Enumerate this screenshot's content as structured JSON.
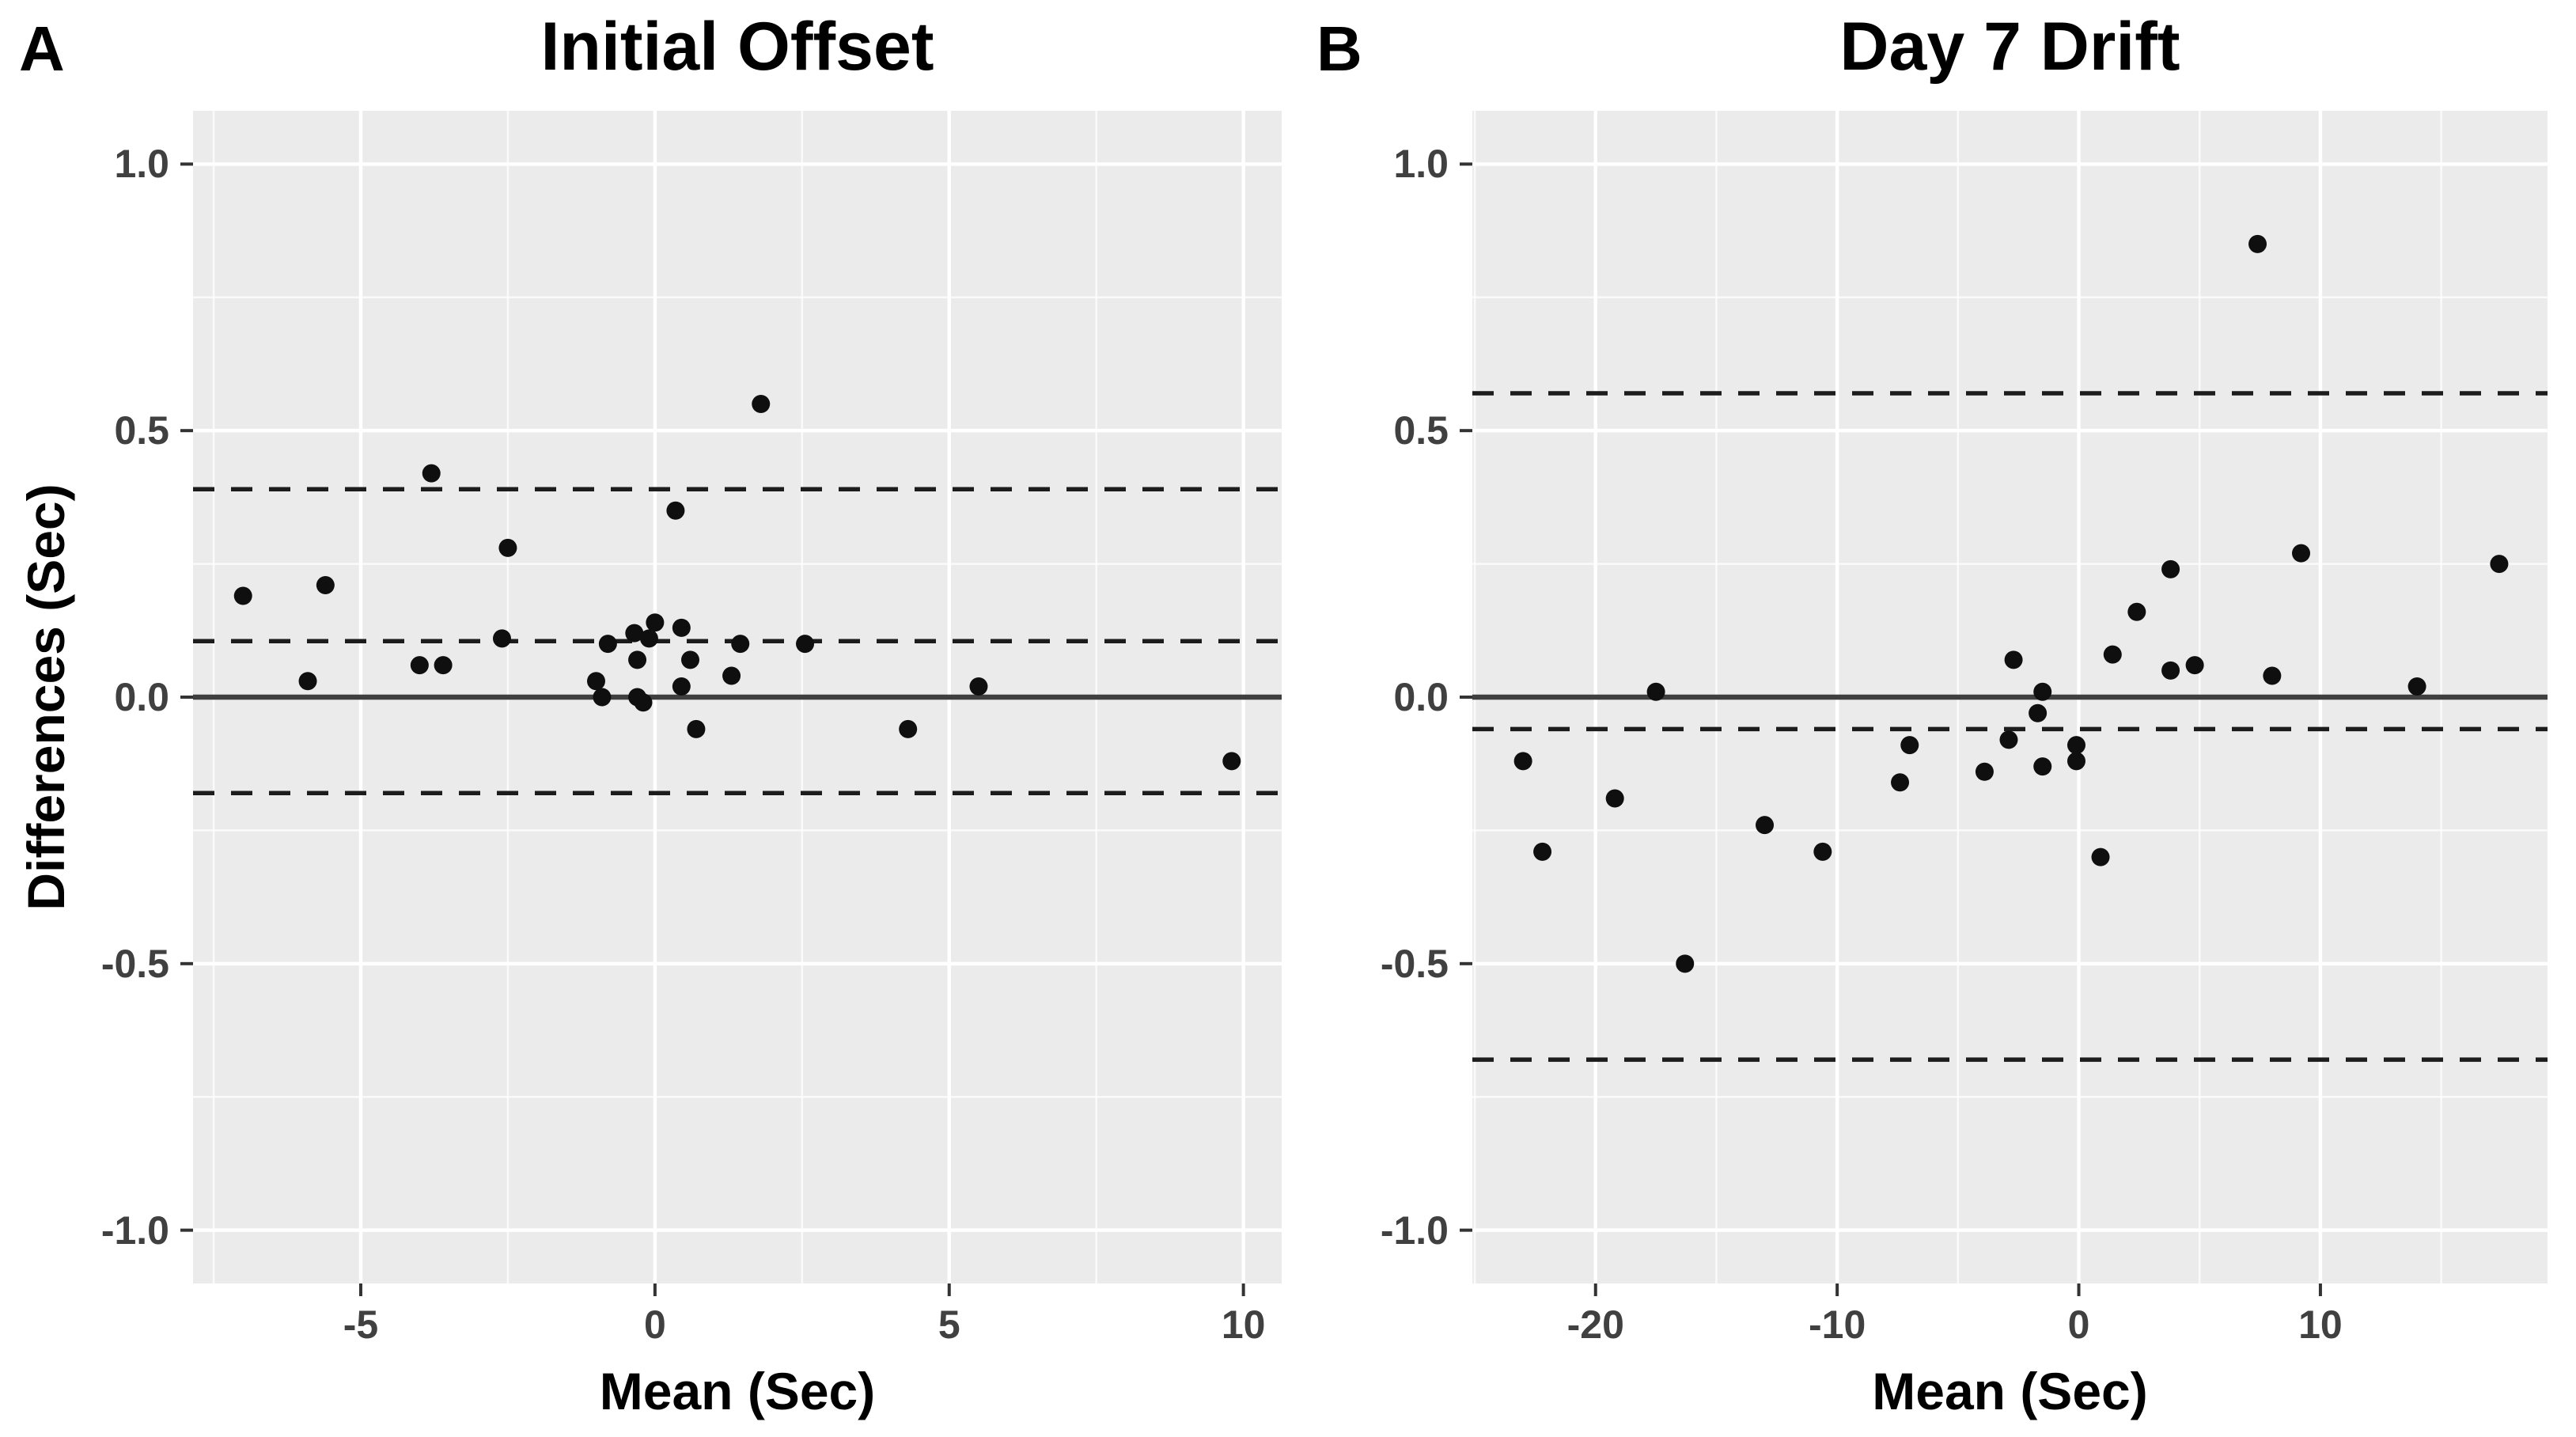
{
  "figure": {
    "y_axis_title": "Differences (Sec)",
    "background_color": "#ffffff",
    "panel_background_color": "#ebebeb",
    "gridline_color": "#ffffff",
    "point_color": "#0f0f0f",
    "dashed_line_color": "#1c1c1c",
    "zero_line_color": "#3f3f3f",
    "tick_mark_color": "#333333",
    "tick_label_color": "#404040"
  },
  "chart_data": [
    {
      "type": "scatter",
      "panel_label": "A",
      "title": "Initial Offset",
      "xlabel": "Mean (Sec)",
      "ylabel": "Differences (Sec)",
      "xlim": [
        -7.85,
        10.65
      ],
      "ylim": [
        -1.1,
        1.1
      ],
      "x_ticks": [
        -5,
        0,
        5,
        10
      ],
      "x_tick_labels": [
        "-5",
        "0",
        "5",
        "10"
      ],
      "x_minor_breaks": [
        -7.5,
        -2.5,
        2.5,
        7.5
      ],
      "y_ticks": [
        1.0,
        0.5,
        0.0,
        -0.5,
        -1.0
      ],
      "y_tick_labels": [
        "1.0",
        "0.5",
        "0.0",
        "-0.5",
        "-1.0"
      ],
      "y_minor_breaks": [
        0.75,
        0.25,
        -0.25,
        -0.75
      ],
      "grid": true,
      "legend": "none",
      "lines": {
        "zero": 0.0,
        "mean_bias": 0.105,
        "upper_loa": 0.39,
        "lower_loa": -0.18
      },
      "points": [
        [
          -7.0,
          0.19
        ],
        [
          -5.9,
          0.03
        ],
        [
          -5.6,
          0.21
        ],
        [
          -4.0,
          0.06
        ],
        [
          -3.8,
          0.42
        ],
        [
          -3.6,
          0.06
        ],
        [
          -2.6,
          0.11
        ],
        [
          -2.5,
          0.28
        ],
        [
          -1.0,
          0.03
        ],
        [
          -0.9,
          0.0
        ],
        [
          -0.8,
          0.1
        ],
        [
          -0.35,
          0.12
        ],
        [
          -0.3,
          0.07
        ],
        [
          -0.3,
          0.0
        ],
        [
          -0.2,
          -0.01
        ],
        [
          -0.1,
          0.11
        ],
        [
          0.0,
          0.14
        ],
        [
          0.35,
          0.35
        ],
        [
          0.45,
          0.13
        ],
        [
          0.45,
          0.02
        ],
        [
          0.6,
          0.07
        ],
        [
          0.7,
          -0.06
        ],
        [
          1.3,
          0.04
        ],
        [
          1.45,
          0.1
        ],
        [
          1.8,
          0.55
        ],
        [
          2.55,
          0.1
        ],
        [
          4.3,
          -0.06
        ],
        [
          5.5,
          0.02
        ],
        [
          9.8,
          -0.12
        ]
      ]
    },
    {
      "type": "scatter",
      "panel_label": "B",
      "title": "Day 7 Drift",
      "xlabel": "Mean (Sec)",
      "ylabel": "Differences (Sec)",
      "xlim": [
        -25.1,
        19.4
      ],
      "ylim": [
        -1.1,
        1.1
      ],
      "x_ticks": [
        -20,
        -10,
        0,
        10
      ],
      "x_tick_labels": [
        "-20",
        "-10",
        "0",
        "10"
      ],
      "x_minor_breaks": [
        -25,
        -15,
        -5,
        5,
        15
      ],
      "y_ticks": [
        1.0,
        0.5,
        0.0,
        -0.5,
        -1.0
      ],
      "y_tick_labels": [
        "1.0",
        "0.5",
        "0.0",
        "-0.5",
        "-1.0"
      ],
      "y_minor_breaks": [
        0.75,
        0.25,
        -0.25,
        -0.75
      ],
      "grid": true,
      "legend": "none",
      "lines": {
        "zero": 0.0,
        "mean_bias": -0.06,
        "upper_loa": 0.57,
        "lower_loa": -0.68
      },
      "points": [
        [
          -23.0,
          -0.12
        ],
        [
          -22.2,
          -0.29
        ],
        [
          -19.2,
          -0.19
        ],
        [
          -17.5,
          0.01
        ],
        [
          -16.3,
          -0.5
        ],
        [
          -13.0,
          -0.24
        ],
        [
          -10.6,
          -0.29
        ],
        [
          -7.4,
          -0.16
        ],
        [
          -7.0,
          -0.09
        ],
        [
          -3.9,
          -0.14
        ],
        [
          -2.9,
          -0.08
        ],
        [
          -2.7,
          0.07
        ],
        [
          -1.7,
          -0.03
        ],
        [
          -1.5,
          0.01
        ],
        [
          -1.5,
          -0.13
        ],
        [
          -0.1,
          -0.09
        ],
        [
          -0.1,
          -0.12
        ],
        [
          0.9,
          -0.3
        ],
        [
          1.4,
          0.08
        ],
        [
          2.4,
          0.16
        ],
        [
          3.8,
          0.24
        ],
        [
          3.8,
          0.05
        ],
        [
          4.8,
          0.06
        ],
        [
          7.4,
          0.85
        ],
        [
          8.0,
          0.04
        ],
        [
          9.2,
          0.27
        ],
        [
          14.0,
          0.02
        ],
        [
          17.4,
          0.25
        ]
      ]
    }
  ]
}
